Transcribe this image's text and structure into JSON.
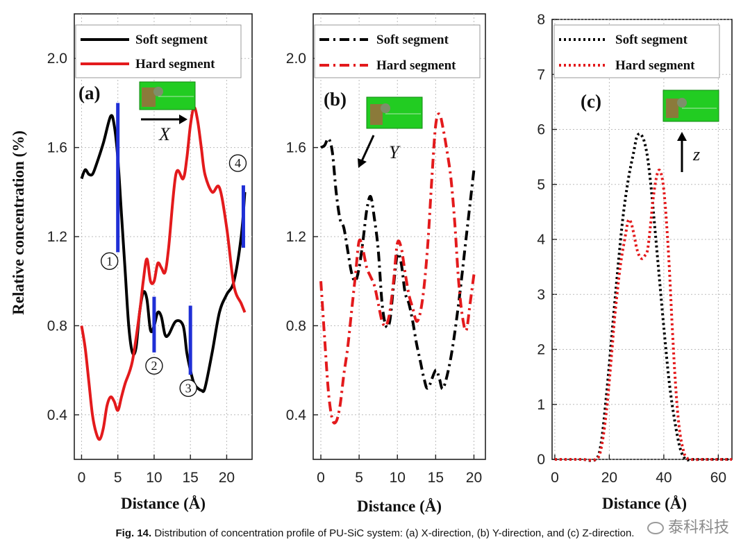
{
  "caption": {
    "label": "Fig. 14.",
    "text": "Distribution of concentration profile of PU-SiC system: (a) X-direction, (b) Y-direction, and (c) Z-direction."
  },
  "watermark": "泰科科技",
  "colors": {
    "soft": "#000000",
    "hard": "#e31a1c",
    "marker": "#1f2fd6",
    "inset_green": "#22cc22"
  },
  "chart_data": [
    {
      "type": "line",
      "panel_label": "(a)",
      "xlabel": "Distance (Å)",
      "ylabel": "Relative concentration (%)",
      "xlim": [
        -1,
        23.5
      ],
      "ylim": [
        0.2,
        2.2
      ],
      "xticks": [
        0,
        5,
        10,
        15,
        20
      ],
      "yticks": [
        0.4,
        0.8,
        1.2,
        1.6,
        2.0
      ],
      "line_style": "solid",
      "grid": true,
      "legend_position": "top",
      "direction_label": "X",
      "direction_arrow": "right",
      "series": [
        {
          "name": "Soft segment",
          "color": "#000000",
          "x": [
            0,
            0.5,
            1,
            1.5,
            2,
            3,
            4,
            4.5,
            5,
            5.5,
            6,
            6.5,
            7,
            7.5,
            8,
            8.5,
            9,
            9.5,
            10,
            10.5,
            11,
            11.5,
            12,
            13,
            14,
            14.5,
            15,
            15.5,
            16,
            16.5,
            17,
            18,
            19,
            20,
            21,
            22,
            22.5
          ],
          "y": [
            1.46,
            1.5,
            1.48,
            1.48,
            1.52,
            1.62,
            1.74,
            1.7,
            1.55,
            1.3,
            1.05,
            0.8,
            0.68,
            0.7,
            0.86,
            0.95,
            0.92,
            0.78,
            0.8,
            0.86,
            0.84,
            0.76,
            0.76,
            0.82,
            0.8,
            0.68,
            0.6,
            0.54,
            0.52,
            0.51,
            0.52,
            0.68,
            0.86,
            0.94,
            1.0,
            1.2,
            1.4
          ]
        },
        {
          "name": "Hard segment",
          "color": "#e31a1c",
          "x": [
            0,
            0.5,
            1,
            1.5,
            2,
            2.5,
            3,
            3.5,
            4,
            4.5,
            5,
            5.5,
            6,
            7,
            8,
            8.5,
            9,
            9.5,
            10,
            10.5,
            11,
            11.5,
            12,
            13,
            14,
            14.5,
            15,
            15.5,
            16,
            16.5,
            17,
            18,
            19,
            20,
            21,
            22,
            22.5
          ],
          "y": [
            0.8,
            0.7,
            0.55,
            0.4,
            0.32,
            0.29,
            0.34,
            0.44,
            0.48,
            0.46,
            0.42,
            0.48,
            0.54,
            0.64,
            0.86,
            1.0,
            1.1,
            1.0,
            1.0,
            1.08,
            1.06,
            1.04,
            1.15,
            1.48,
            1.46,
            1.55,
            1.7,
            1.78,
            1.72,
            1.6,
            1.48,
            1.4,
            1.42,
            1.24,
            0.98,
            0.9,
            0.86
          ]
        }
      ],
      "markers": [
        {
          "x": 5,
          "label": "①"
        },
        {
          "x": 10,
          "label": "②"
        },
        {
          "x": 15,
          "label": "③"
        },
        {
          "x": 22.3,
          "label": "④"
        }
      ]
    },
    {
      "type": "line",
      "panel_label": "(b)",
      "xlabel": "Distance (Å)",
      "xlim": [
        -1,
        21.5
      ],
      "ylim": [
        0.2,
        2.2
      ],
      "xticks": [
        0,
        5,
        10,
        15,
        20
      ],
      "yticks": [
        0.4,
        0.8,
        1.2,
        1.6,
        2.0
      ],
      "line_style": "dash-dot",
      "grid": true,
      "legend_position": "top",
      "direction_label": "Y",
      "direction_arrow": "down-left",
      "series": [
        {
          "name": "Soft segment",
          "color": "#000000",
          "x": [
            0,
            0.5,
            1,
            1.5,
            2,
            2.5,
            3,
            3.5,
            4,
            4.5,
            5,
            5.5,
            6,
            6.5,
            7,
            7.5,
            8,
            8.5,
            9,
            9.5,
            10,
            10.5,
            11,
            11.5,
            12,
            12.5,
            13,
            13.5,
            14,
            15,
            15.5,
            16,
            17,
            18,
            19,
            20
          ],
          "y": [
            1.6,
            1.61,
            1.64,
            1.58,
            1.4,
            1.28,
            1.24,
            1.14,
            1.04,
            1.0,
            1.06,
            1.18,
            1.32,
            1.38,
            1.28,
            1.14,
            0.9,
            0.8,
            0.82,
            0.98,
            1.12,
            1.08,
            0.95,
            0.9,
            0.82,
            0.72,
            0.64,
            0.56,
            0.52,
            0.6,
            0.56,
            0.52,
            0.66,
            0.9,
            1.2,
            1.5
          ]
        },
        {
          "name": "Hard segment",
          "color": "#e31a1c",
          "x": [
            0,
            0.5,
            1,
            1.5,
            2,
            2.5,
            3,
            3.5,
            4,
            4.5,
            5,
            5.5,
            6,
            6.5,
            7,
            7.5,
            8,
            8.5,
            9,
            9.5,
            10,
            10.5,
            11,
            11.5,
            12,
            12.5,
            13,
            13.5,
            14,
            14.5,
            15,
            15.5,
            16,
            16.5,
            17,
            17.5,
            18,
            18.5,
            19,
            19.5,
            20
          ],
          "y": [
            1.0,
            0.74,
            0.5,
            0.38,
            0.37,
            0.44,
            0.58,
            0.7,
            0.86,
            1.02,
            1.18,
            1.14,
            1.06,
            1.02,
            0.98,
            0.9,
            0.82,
            0.8,
            0.86,
            1.0,
            1.17,
            1.15,
            1.04,
            0.94,
            0.88,
            0.82,
            0.86,
            0.98,
            1.18,
            1.46,
            1.7,
            1.75,
            1.68,
            1.58,
            1.46,
            1.26,
            1.0,
            0.84,
            0.78,
            0.9,
            1.03
          ]
        }
      ]
    },
    {
      "type": "line",
      "panel_label": "(c)",
      "xlabel": "Distance (Å)",
      "xlim": [
        -1,
        65
      ],
      "ylim": [
        0,
        8
      ],
      "xticks": [
        0,
        20,
        40,
        60
      ],
      "yticks": [
        0,
        1,
        2,
        3,
        4,
        5,
        6,
        7,
        8
      ],
      "line_style": "dotted",
      "grid": true,
      "legend_position": "top",
      "direction_label": "z",
      "direction_arrow": "up",
      "series": [
        {
          "name": "Soft segment",
          "color": "#000000",
          "x": [
            0,
            5,
            10,
            15,
            17,
            19,
            21,
            23,
            25,
            27,
            29,
            30,
            31,
            32,
            33,
            34,
            35,
            36,
            38,
            40,
            42,
            44,
            46,
            48,
            50,
            55,
            60,
            65
          ],
          "y": [
            0,
            0,
            0,
            0,
            0.3,
            1.2,
            2.3,
            3.4,
            4.4,
            5.1,
            5.6,
            5.85,
            5.92,
            5.88,
            5.75,
            5.5,
            5.1,
            4.6,
            3.5,
            2.4,
            1.4,
            0.7,
            0.2,
            0,
            0,
            0,
            0,
            0
          ]
        },
        {
          "name": "Hard segment",
          "color": "#e31a1c",
          "x": [
            0,
            5,
            10,
            15,
            17,
            19,
            21,
            22,
            24,
            26,
            27,
            28,
            29,
            30,
            31,
            32,
            33,
            34,
            35,
            36,
            37,
            38,
            39,
            40,
            41,
            42,
            43,
            44,
            45,
            46,
            47,
            48,
            50,
            55,
            60,
            65
          ],
          "y": [
            0,
            0,
            0,
            0,
            0.2,
            0.9,
            2.0,
            2.6,
            3.5,
            4.1,
            4.35,
            4.3,
            4.1,
            3.85,
            3.7,
            3.65,
            3.7,
            3.8,
            4.2,
            4.7,
            5.05,
            5.25,
            5.2,
            4.9,
            4.3,
            3.5,
            2.5,
            1.6,
            0.9,
            0.45,
            0.2,
            0.05,
            0,
            0,
            0,
            0
          ]
        }
      ]
    }
  ]
}
